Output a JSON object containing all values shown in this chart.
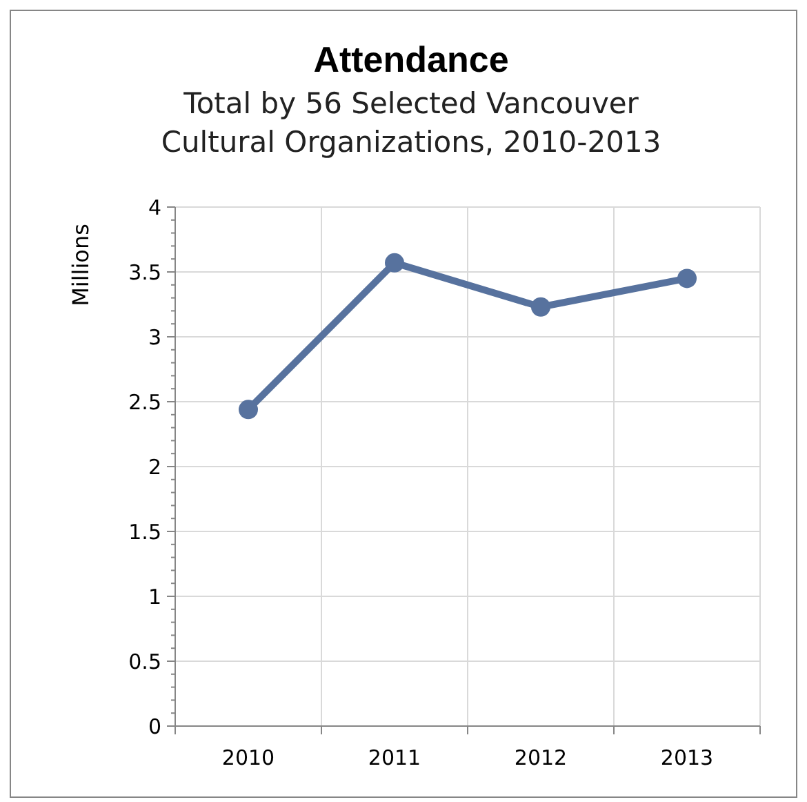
{
  "chart_data": {
    "type": "line",
    "title": "Attendance",
    "subtitle": "Total by 56 Selected Vancouver\nCultural Organizations, 2010-2013",
    "ylabel": "Millions",
    "categories": [
      "2010",
      "2011",
      "2012",
      "2013"
    ],
    "series": [
      {
        "color": "#57729e",
        "values": [
          2.44,
          3.57,
          3.23,
          3.45
        ]
      }
    ],
    "ylim": [
      0,
      4
    ],
    "yticks": [
      0,
      {
        "value": 0.1,
        "label": null
      },
      {
        "value": 0.2,
        "label": null
      },
      {
        "value": 0.3,
        "label": null
      },
      {
        "value": 0.4,
        "label": null
      },
      0.5,
      {
        "value": 0.6,
        "label": null
      },
      {
        "value": 0.7,
        "label": null
      },
      {
        "value": 0.8,
        "label": null
      },
      {
        "value": 0.9,
        "label": null
      },
      1,
      {
        "value": 1.1,
        "label": null
      },
      {
        "value": 1.2,
        "label": null
      },
      {
        "value": 1.3,
        "label": null
      },
      {
        "value": 1.4,
        "label": null
      },
      1.5,
      {
        "value": 1.6,
        "label": null
      },
      {
        "value": 1.7,
        "label": null
      },
      {
        "value": 1.8,
        "label": null
      },
      {
        "value": 1.9,
        "label": null
      },
      2,
      {
        "value": 2.1,
        "label": null
      },
      {
        "value": 2.2,
        "label": null
      },
      {
        "value": 2.3,
        "label": null
      },
      {
        "value": 2.4,
        "label": null
      },
      2.5,
      {
        "value": 2.6,
        "label": null
      },
      {
        "value": 2.7,
        "label": null
      },
      {
        "value": 2.8,
        "label": null
      },
      {
        "value": 2.9,
        "label": null
      },
      3,
      {
        "value": 3.1,
        "label": null
      },
      {
        "value": 3.2,
        "label": null
      },
      {
        "value": 3.3,
        "label": null
      },
      {
        "value": 3.4,
        "label": null
      },
      3.5,
      {
        "value": 3.6,
        "label": null
      },
      {
        "value": 3.7,
        "label": null
      },
      {
        "value": 3.8,
        "label": null
      },
      {
        "value": 3.9,
        "label": null
      },
      4
    ],
    "grid": true,
    "marker": "circle",
    "line_style": "solid"
  }
}
